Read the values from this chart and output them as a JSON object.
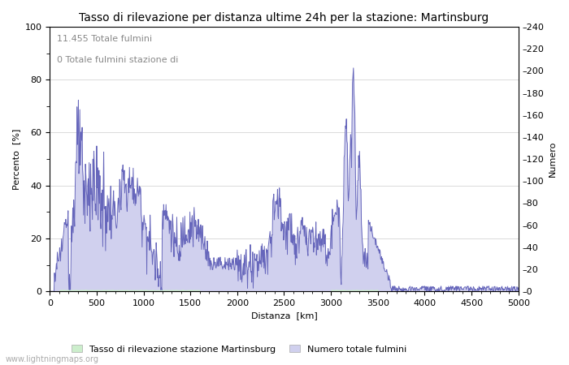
{
  "title": "Tasso di rilevazione per distanza ultime 24h per la stazione: Martinsburg",
  "xlabel": "Distanza  [km]",
  "ylabel_left": "Percento  [%]",
  "ylabel_right": "Numero",
  "annotation_line1": "11.455 Totale fulmini",
  "annotation_line2": "0 Totale fulmini stazione di",
  "legend_label1": "Tasso di rilevazione stazione Martinsburg",
  "legend_label2": "Numero totale fulmini",
  "watermark": "www.lightningmaps.org",
  "xlim": [
    0,
    5000
  ],
  "ylim_left": [
    0,
    100
  ],
  "ylim_right": [
    0,
    240
  ],
  "xticks": [
    0,
    500,
    1000,
    1500,
    2000,
    2500,
    3000,
    3500,
    4000,
    4500,
    5000
  ],
  "yticks_left": [
    0,
    20,
    40,
    60,
    80,
    100
  ],
  "yticks_right": [
    0,
    20,
    40,
    60,
    80,
    100,
    120,
    140,
    160,
    180,
    200,
    220,
    240
  ],
  "fill_blue_color": "#d0d0ee",
  "line_blue_color": "#6666bb",
  "fill_green_color": "#cceecc",
  "line_green_color": "#88bb88",
  "bg_color": "#ffffff",
  "grid_color": "#cccccc",
  "title_fontsize": 10,
  "axis_fontsize": 8,
  "tick_fontsize": 8
}
